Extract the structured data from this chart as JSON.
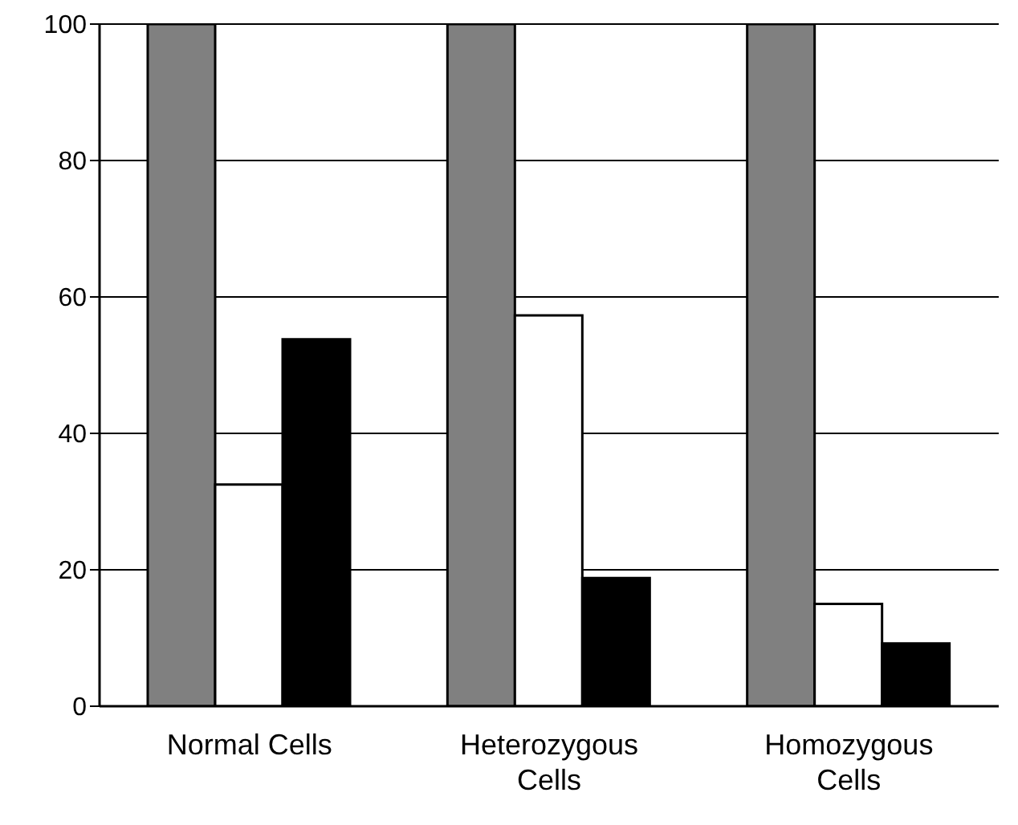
{
  "chart_data": {
    "type": "bar",
    "categories": [
      "Normal Cells",
      "Heterozygous Cells",
      "Homozygous Cells"
    ],
    "series": [
      {
        "color": "#808080",
        "values": [
          100,
          100,
          100
        ]
      },
      {
        "color": "#ffffff",
        "values": [
          32.5,
          57.3,
          15
        ]
      },
      {
        "color": "#000000",
        "values": [
          53.8,
          18.8,
          9.2
        ]
      }
    ],
    "ylim": [
      0,
      100
    ],
    "yticks": [
      0,
      20,
      40,
      60,
      80,
      100
    ],
    "grid": "y",
    "legend": false
  }
}
